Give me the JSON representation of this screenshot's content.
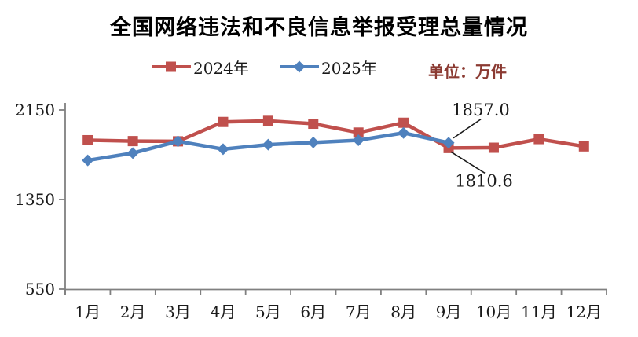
{
  "chart_data": {
    "type": "line",
    "title": "全国网络违法和不良信息举报受理总量情况",
    "unit_label": "单位：万件",
    "categories": [
      "1月",
      "2月",
      "3月",
      "4月",
      "5月",
      "6月",
      "7月",
      "8月",
      "9月",
      "10月",
      "11月",
      "12月"
    ],
    "xlabel": "",
    "ylabel": "",
    "ylim": [
      550,
      2150
    ],
    "y_ticks": [
      550,
      1350,
      2150
    ],
    "grid": false,
    "legend_position": "top",
    "series": [
      {
        "name": "2024年",
        "color": "#c0504d",
        "marker": "square",
        "values": [
          1880,
          1872,
          1870,
          2043,
          2053,
          2027,
          1948,
          2036,
          1810.6,
          1813,
          1890,
          1825
        ]
      },
      {
        "name": "2025年",
        "color": "#4f81bd",
        "marker": "diamond",
        "values": [
          1700,
          1765,
          1870,
          1800,
          1840,
          1860,
          1880,
          1945,
          1857.0
        ]
      }
    ],
    "annotations": [
      {
        "text": "1857.0",
        "series": "2025年",
        "category": "9月",
        "value": 1857.0,
        "position": "above"
      },
      {
        "text": "1810.6",
        "series": "2024年",
        "category": "9月",
        "value": 1810.6,
        "position": "below"
      }
    ]
  },
  "colors": {
    "axis": "#808080",
    "tick_label": "#1a1a1a",
    "annotation_text": "#1a1a1a",
    "annotation_line": "#1a1a1a",
    "unit_text": "#8b3a32",
    "background": "#ffffff"
  }
}
